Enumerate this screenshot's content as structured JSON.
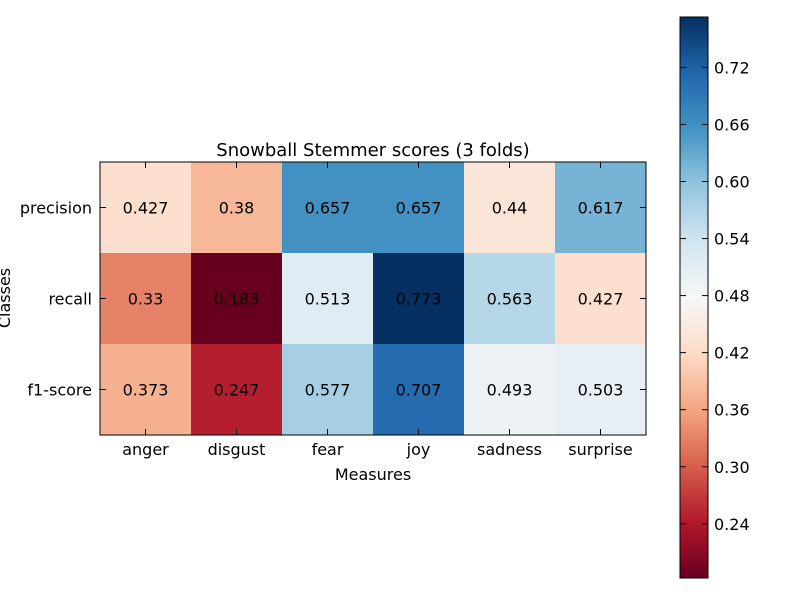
{
  "chart_data": {
    "type": "heatmap",
    "title": "Snowball Stemmer scores (3 folds)",
    "xlabel": "Measures",
    "ylabel": "Classes",
    "x_categories": [
      "anger",
      "disgust",
      "fear",
      "joy",
      "sadness",
      "surprise"
    ],
    "y_categories": [
      "precision",
      "recall",
      "f1-score"
    ],
    "values": [
      [
        0.427,
        0.38,
        0.657,
        0.657,
        0.44,
        0.617
      ],
      [
        0.33,
        0.183,
        0.513,
        0.773,
        0.563,
        0.427
      ],
      [
        0.373,
        0.247,
        0.577,
        0.707,
        0.493,
        0.503
      ]
    ],
    "cell_labels": [
      [
        "0.427",
        "0.38",
        "0.657",
        "0.657",
        "0.44",
        "0.617"
      ],
      [
        "0.33",
        "0.183",
        "0.513",
        "0.773",
        "0.563",
        "0.427"
      ],
      [
        "0.373",
        "0.247",
        "0.577",
        "0.707",
        "0.493",
        "0.503"
      ]
    ],
    "colormap": "RdBu",
    "color_range": [
      0.183,
      0.773
    ],
    "colorbar_ticks": [
      0.24,
      0.3,
      0.36,
      0.42,
      0.48,
      0.54,
      0.6,
      0.66,
      0.72
    ],
    "colorbar_tick_labels": [
      "0.24",
      "0.30",
      "0.36",
      "0.42",
      "0.48",
      "0.54",
      "0.60",
      "0.66",
      "0.72"
    ],
    "colormap_stops": [
      "#67001f",
      "#b2182b",
      "#d6604d",
      "#f4a582",
      "#fddbc7",
      "#f7f7f7",
      "#d1e5f0",
      "#92c5de",
      "#4393c3",
      "#2166ac",
      "#053061"
    ]
  }
}
